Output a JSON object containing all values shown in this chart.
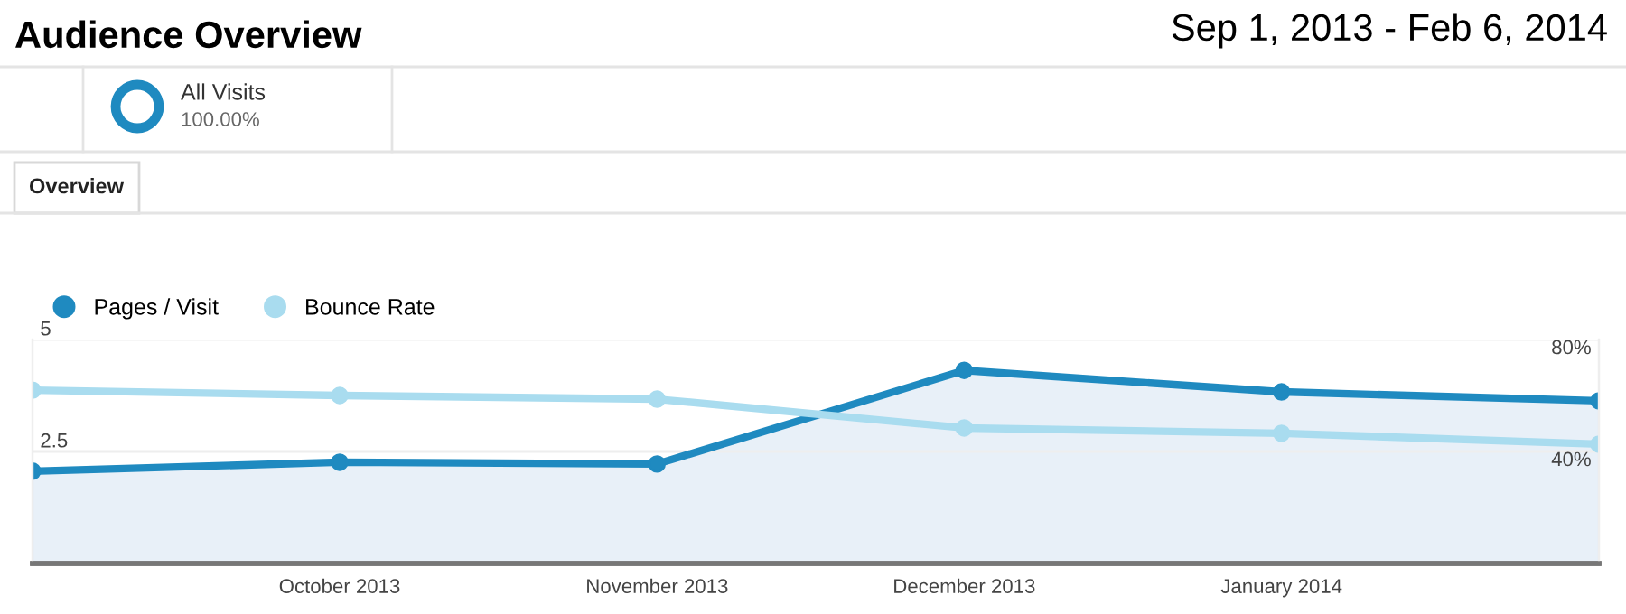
{
  "chart_data": {
    "type": "line",
    "title": "Audience Overview",
    "subtitle": "Sep 1, 2013 - Feb 6, 2014",
    "annotations": [
      "All Visits",
      "100.00%",
      "Overview"
    ],
    "x": [
      "2013-09-01",
      "2013-10-01",
      "2013-11-01",
      "2013-12-01",
      "2014-01-01",
      "2014-02-01"
    ],
    "series": [
      {
        "name": "Pages / Visit",
        "type": "area",
        "color": "#1f8ac0",
        "values": [
          2.06,
          2.26,
          2.22,
          4.31,
          3.83,
          3.63
        ]
      },
      {
        "name": "Bounce Rate",
        "axis": "y2",
        "color": "#a9dcef",
        "values": [
          61.9,
          60.0,
          58.7,
          48.4,
          46.5,
          42.6
        ]
      }
    ],
    "xlim": [
      "2013-09-01",
      "2014-02-01"
    ],
    "xticks": [
      {
        "value": "2013-10-01",
        "label": "October 2013"
      },
      {
        "value": "2013-11-01",
        "label": "November 2013"
      },
      {
        "value": "2013-12-01",
        "label": "December 2013"
      },
      {
        "value": "2014-01-01",
        "label": "January 2014"
      }
    ],
    "ylim": [
      0,
      5
    ],
    "yticks": [
      2.5,
      5
    ],
    "y2lim": [
      0,
      80
    ],
    "y2ticks": [
      {
        "value": 40,
        "label": "40%"
      },
      {
        "value": 80,
        "label": "80%"
      }
    ],
    "grid": "y",
    "legend": "top left",
    "marker": "circle",
    "line_style": "solid"
  }
}
